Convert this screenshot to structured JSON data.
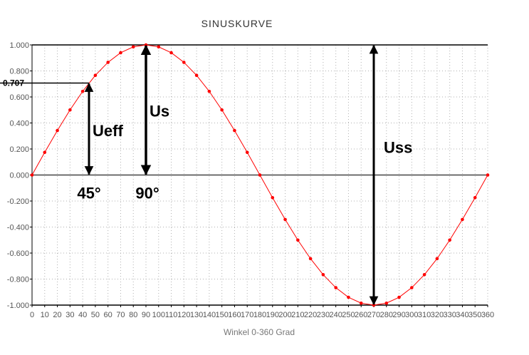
{
  "chart_data": {
    "type": "line",
    "title": "SINUSKURVE",
    "xlabel": "Winkel 0-360 Grad",
    "ylabel": "",
    "xlim": [
      0,
      360
    ],
    "ylim": [
      -1.0,
      1.0
    ],
    "grid": true,
    "x_ticks": [
      "0",
      "10",
      "20",
      "30",
      "40",
      "50",
      "60",
      "70",
      "80",
      "90",
      "100",
      "110",
      "120",
      "130",
      "140",
      "150",
      "160",
      "170",
      "180",
      "190",
      "200",
      "210",
      "220",
      "230",
      "240",
      "250",
      "260",
      "270",
      "280",
      "290",
      "300",
      "310",
      "320",
      "330",
      "340",
      "350",
      "360"
    ],
    "y_ticks": [
      "1.000",
      "0.800",
      "0.600",
      "0.400",
      "0.200",
      "0.000",
      "-0.200",
      "-0.400",
      "-0.600",
      "-0.800",
      "-1.000"
    ],
    "series": [
      {
        "color": "#ff0000",
        "x": [
          0,
          10,
          20,
          30,
          40,
          50,
          60,
          70,
          80,
          90,
          100,
          110,
          120,
          130,
          140,
          150,
          160,
          170,
          180,
          190,
          200,
          210,
          220,
          230,
          240,
          250,
          260,
          270,
          280,
          290,
          300,
          310,
          320,
          330,
          340,
          350,
          360
        ],
        "y": [
          0.0,
          0.174,
          0.342,
          0.5,
          0.643,
          0.766,
          0.866,
          0.94,
          0.985,
          1.0,
          0.985,
          0.94,
          0.866,
          0.766,
          0.643,
          0.5,
          0.342,
          0.174,
          0.0,
          -0.174,
          -0.342,
          -0.5,
          -0.643,
          -0.766,
          -0.866,
          -0.94,
          -0.985,
          -1.0,
          -0.985,
          -0.94,
          -0.866,
          -0.766,
          -0.643,
          -0.5,
          -0.342,
          -0.174,
          0.0
        ]
      }
    ],
    "annotations": {
      "ueff_value_label": "0.707",
      "ueff_value": 0.707,
      "ueff_label": "Ueff",
      "ueff_x": 45,
      "us_label": "Us",
      "us_x": 90,
      "uss_label": "Uss",
      "uss_x": 270,
      "angle_45_label": "45°",
      "angle_90_label": "90°"
    }
  }
}
